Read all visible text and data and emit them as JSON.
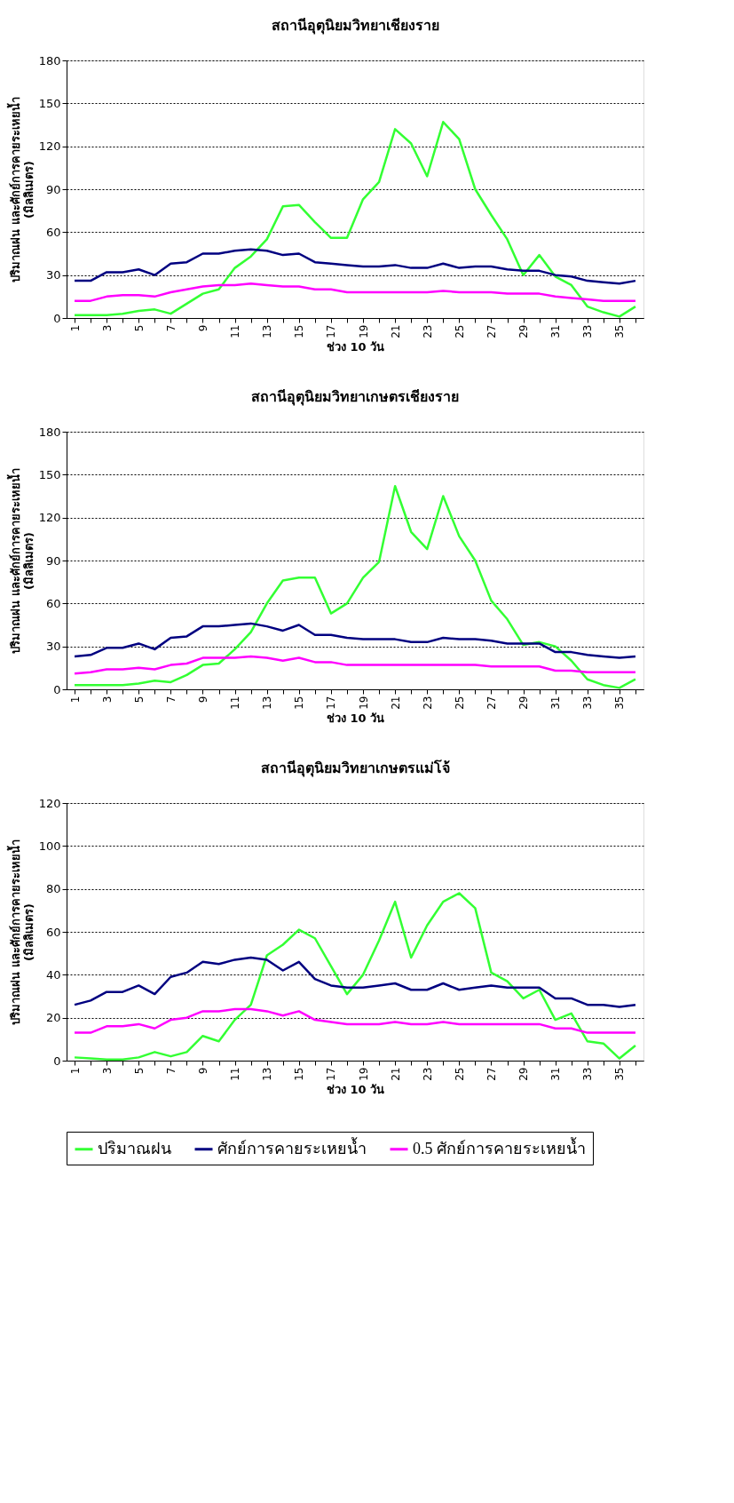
{
  "chart_data": [
    {
      "type": "line",
      "title": "สถานีอุตุนิยมวิทยาเชียงราย",
      "xlabel": "ช่วง 10 วัน",
      "ylabel": "ปริมาณฝน และศักย์การคายระเหยน้ำ\n(มิลลิเมตร)",
      "categories": [
        "1",
        null,
        "3",
        null,
        "5",
        null,
        "7",
        null,
        "9",
        null,
        "11",
        null,
        "13",
        null,
        "15",
        null,
        "17",
        null,
        "19",
        null,
        "21",
        null,
        "23",
        null,
        "25",
        null,
        "27",
        null,
        "29",
        null,
        "31",
        null,
        "33",
        null,
        "35",
        null
      ],
      "ylim": [
        0,
        180
      ],
      "yticks": [
        0,
        30,
        60,
        90,
        120,
        150,
        180
      ],
      "grid": "y",
      "legend": false,
      "series": [
        {
          "color": "#33ff33",
          "values": [
            2,
            2,
            2,
            3,
            5,
            6,
            3,
            10,
            17,
            20,
            35,
            43,
            55,
            78,
            79,
            67,
            56,
            56,
            83,
            95,
            132,
            122,
            99,
            137,
            125,
            90,
            72,
            55,
            30,
            44,
            29,
            23,
            8,
            4,
            1,
            8
          ]
        },
        {
          "color": "#000080",
          "values": [
            26,
            26,
            32,
            32,
            34,
            30,
            38,
            39,
            45,
            45,
            47,
            48,
            47,
            44,
            45,
            39,
            38,
            37,
            36,
            36,
            37,
            35,
            35,
            38,
            35,
            36,
            36,
            34,
            33,
            33,
            30,
            29,
            26,
            25,
            24,
            26
          ]
        },
        {
          "color": "#ff00ff",
          "values": [
            12,
            12,
            15,
            16,
            16,
            15,
            18,
            20,
            22,
            23,
            23,
            24,
            23,
            22,
            22,
            20,
            20,
            18,
            18,
            18,
            18,
            18,
            18,
            19,
            18,
            18,
            18,
            17,
            17,
            17,
            15,
            14,
            13,
            12,
            12,
            12
          ]
        }
      ]
    },
    {
      "type": "line",
      "title": "สถานีอุตุนิยมวิทยาเกษตรเชียงราย",
      "xlabel": "ช่วง 10 วัน",
      "ylabel": "ปริมาณฝน และศักย์การคายระเหยน้ำ\n(มิลลิเมตร)",
      "categories": [
        "1",
        null,
        "3",
        null,
        "5",
        null,
        "7",
        null,
        "9",
        null,
        "11",
        null,
        "13",
        null,
        "15",
        null,
        "17",
        null,
        "19",
        null,
        "21",
        null,
        "23",
        null,
        "25",
        null,
        "27",
        null,
        "29",
        null,
        "31",
        null,
        "33",
        null,
        "35",
        null
      ],
      "ylim": [
        0,
        180
      ],
      "yticks": [
        0,
        30,
        60,
        90,
        120,
        150,
        180
      ],
      "grid": "y",
      "legend": false,
      "series": [
        {
          "color": "#33ff33",
          "values": [
            3,
            3,
            3,
            3,
            4,
            6,
            5,
            10,
            17,
            18,
            28,
            40,
            60,
            76,
            78,
            78,
            53,
            60,
            78,
            89,
            142,
            110,
            98,
            135,
            107,
            90,
            62,
            49,
            31,
            33,
            30,
            20,
            7,
            3,
            1,
            7
          ]
        },
        {
          "color": "#000080",
          "values": [
            23,
            24,
            29,
            29,
            32,
            28,
            36,
            37,
            44,
            44,
            45,
            46,
            44,
            41,
            45,
            38,
            38,
            36,
            35,
            35,
            35,
            33,
            33,
            36,
            35,
            35,
            34,
            32,
            32,
            32,
            26,
            26,
            24,
            23,
            22,
            23
          ]
        },
        {
          "color": "#ff00ff",
          "values": [
            11,
            12,
            14,
            14,
            15,
            14,
            17,
            18,
            22,
            22,
            22,
            23,
            22,
            20,
            22,
            19,
            19,
            17,
            17,
            17,
            17,
            17,
            17,
            17,
            17,
            17,
            16,
            16,
            16,
            16,
            13,
            13,
            12,
            12,
            12,
            12
          ]
        }
      ]
    },
    {
      "type": "line",
      "title": "สถานีอุตุนิยมวิทยาเกษตรแม่โจ้",
      "xlabel": "ช่วง 10 วัน",
      "ylabel": "ปริมาณฝน และศักย์การคายระเหยน้ำ\n(มิลลิเมตร)",
      "categories": [
        "1",
        null,
        "3",
        null,
        "5",
        null,
        "7",
        null,
        "9",
        null,
        "11",
        null,
        "13",
        null,
        "15",
        null,
        "17",
        null,
        "19",
        null,
        "21",
        null,
        "23",
        null,
        "25",
        null,
        "27",
        null,
        "29",
        null,
        "31",
        null,
        "33",
        null,
        "35",
        null
      ],
      "ylim": [
        0,
        120
      ],
      "yticks": [
        0,
        20,
        40,
        60,
        80,
        100,
        120
      ],
      "grid": "y",
      "legend": "bottom",
      "series": [
        {
          "name": "ปริมาณฝน",
          "color": "#33ff33",
          "values": [
            1.5,
            1,
            0.5,
            0.5,
            1.5,
            4,
            2,
            4,
            11.5,
            9,
            19,
            26,
            49,
            54,
            61,
            57,
            44,
            31,
            40,
            56,
            74,
            48,
            63,
            74,
            78,
            71,
            41,
            37,
            29,
            33,
            19,
            22,
            9,
            8,
            1,
            7
          ]
        },
        {
          "name": "ศักย์การคายระเหยน้ำ",
          "color": "#000080",
          "values": [
            26,
            28,
            32,
            32,
            35,
            31,
            39,
            41,
            46,
            45,
            47,
            48,
            47,
            42,
            46,
            38,
            35,
            34,
            34,
            35,
            36,
            33,
            33,
            36,
            33,
            34,
            35,
            34,
            34,
            34,
            29,
            29,
            26,
            26,
            25,
            26
          ]
        },
        {
          "name": "0.5 ศักย์การคายระเหยน้ำ",
          "color": "#ff00ff",
          "values": [
            13,
            13,
            16,
            16,
            17,
            15,
            19,
            20,
            23,
            23,
            24,
            24,
            23,
            21,
            23,
            19,
            18,
            17,
            17,
            17,
            18,
            17,
            17,
            18,
            17,
            17,
            17,
            17,
            17,
            17,
            15,
            15,
            13,
            13,
            13,
            13
          ]
        }
      ]
    }
  ]
}
